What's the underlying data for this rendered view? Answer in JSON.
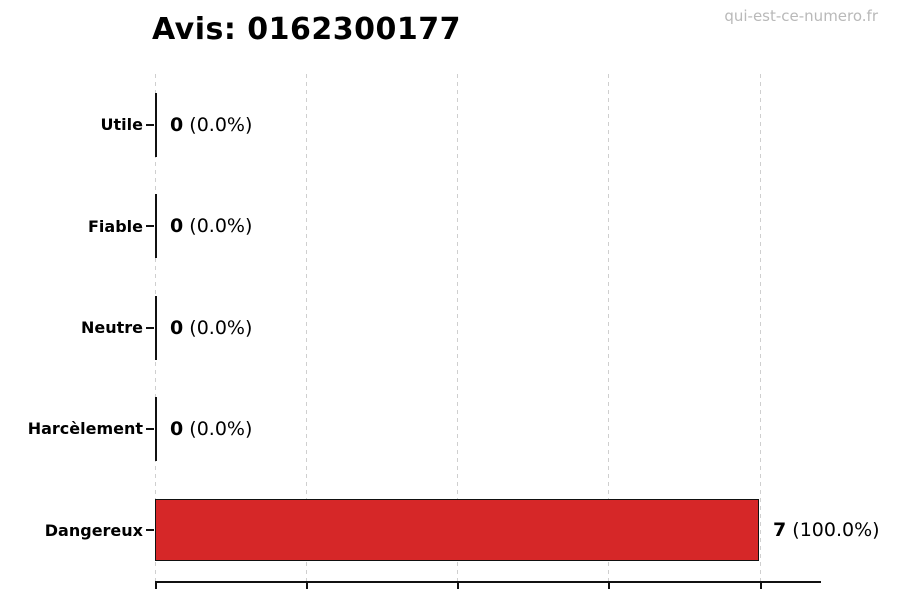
{
  "header": {
    "title": "Avis: 0162300177",
    "watermark": "qui-est-ce-numero.fr"
  },
  "chart_data": {
    "type": "bar",
    "orientation": "horizontal",
    "title": "Avis: 0162300177",
    "categories": [
      "Utile",
      "Fiable",
      "Neutre",
      "Harcèlement",
      "Dangereux"
    ],
    "values": [
      0,
      0,
      0,
      0,
      7
    ],
    "counts": [
      "0",
      "0",
      "0",
      "0",
      "7"
    ],
    "percents": [
      "(0.0%)",
      "(0.0%)",
      "(0.0%)",
      "(0.0%)",
      "(100.0%)"
    ],
    "xlabel": "",
    "ylabel": "",
    "xlim": [
      0,
      7.7
    ],
    "xticks": [
      0,
      1.75,
      3.5,
      5.25,
      7
    ],
    "xtick_labels_visible": false,
    "grid": "vertical-dashed",
    "legend_position": "none",
    "colors": {
      "bar_fill": "#d62728",
      "bar_edge": "#111111",
      "gridline": "#cfcfcf",
      "axis": "#111111",
      "text": "#000000",
      "watermark": "#b9b9b9",
      "background": "#ffffff"
    }
  }
}
